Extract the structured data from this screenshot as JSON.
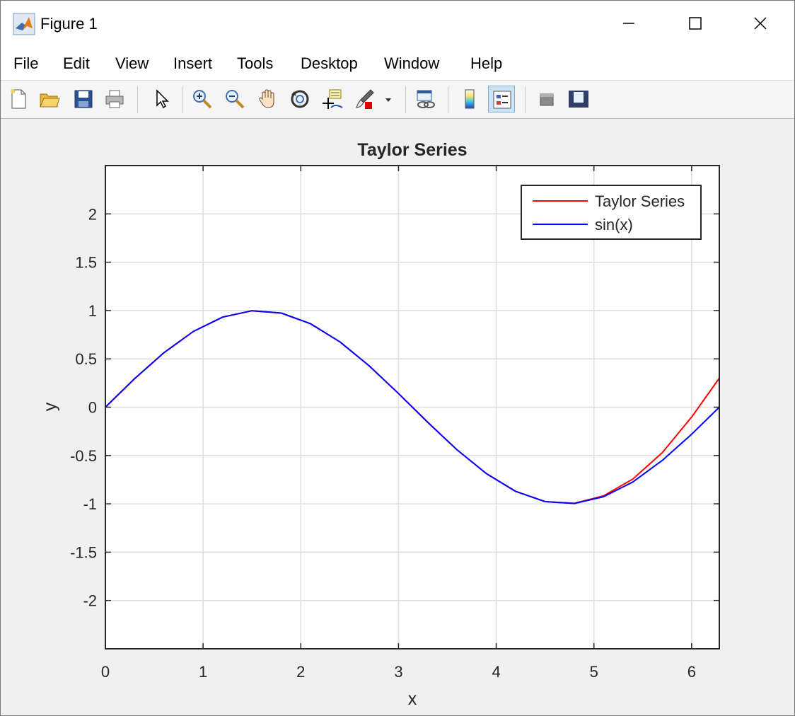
{
  "window": {
    "title": "Figure 1"
  },
  "menu": {
    "items": [
      "File",
      "Edit",
      "View",
      "Insert",
      "Tools",
      "Desktop",
      "Window",
      "Help"
    ]
  },
  "toolbar": {
    "icons": [
      "new-figure-icon",
      "open-file-icon",
      "save-icon",
      "print-icon",
      "edit-plot-arrow-icon",
      "zoom-in-icon",
      "zoom-out-icon",
      "pan-hand-icon",
      "rotate-3d-icon",
      "data-cursor-icon",
      "brush-icon",
      "brush-dropdown-icon",
      "link-plot-icon",
      "insert-colorbar-icon",
      "insert-legend-icon",
      "hide-plot-tools-icon",
      "show-plot-tools-icon"
    ],
    "pressed": "insert-legend-icon"
  },
  "chart_data": {
    "type": "line",
    "title": "Taylor Series",
    "xlabel": "x",
    "ylabel": "y",
    "xlim": [
      0,
      6.2832
    ],
    "ylim": [
      -2.5,
      2.5
    ],
    "xticks": [
      "0",
      "1",
      "2",
      "3",
      "4",
      "5",
      "6"
    ],
    "yticks": [
      "-2",
      "-1.5",
      "-1",
      "-0.5",
      "0",
      "0.5",
      "1",
      "1.5",
      "2"
    ],
    "grid": true,
    "legend_position": "top-right",
    "series": [
      {
        "name": "Taylor Series",
        "color": "#ff0000",
        "x": [
          0,
          0.3,
          0.6,
          0.9,
          1.2,
          1.5,
          1.8,
          2.1,
          2.4,
          2.7,
          3.0,
          3.3,
          3.6,
          3.9,
          4.2,
          4.5,
          4.8,
          5.1,
          5.4,
          5.7,
          6.0,
          6.2832
        ],
        "y": [
          0,
          0.2955,
          0.5646,
          0.7833,
          0.932,
          0.9975,
          0.9738,
          0.8632,
          0.6755,
          0.4274,
          0.1411,
          -0.1577,
          -0.4425,
          -0.6878,
          -0.8716,
          -0.9775,
          -0.9946,
          -0.9173,
          -0.7425,
          -0.4703,
          -0.1018,
          0.3
        ]
      },
      {
        "name": "sin(x)",
        "color": "#0000ff",
        "x": [
          0,
          0.3,
          0.6,
          0.9,
          1.2,
          1.5,
          1.8,
          2.1,
          2.4,
          2.7,
          3.0,
          3.3,
          3.6,
          3.9,
          4.2,
          4.5,
          4.8,
          5.1,
          5.4,
          5.7,
          6.0,
          6.2832
        ],
        "y": [
          0,
          0.2955,
          0.5646,
          0.7833,
          0.932,
          0.9975,
          0.9738,
          0.8632,
          0.6755,
          0.4274,
          0.1411,
          -0.1577,
          -0.4425,
          -0.6878,
          -0.8716,
          -0.9775,
          -0.9962,
          -0.9258,
          -0.7728,
          -0.5507,
          -0.2794,
          0
        ]
      }
    ]
  }
}
